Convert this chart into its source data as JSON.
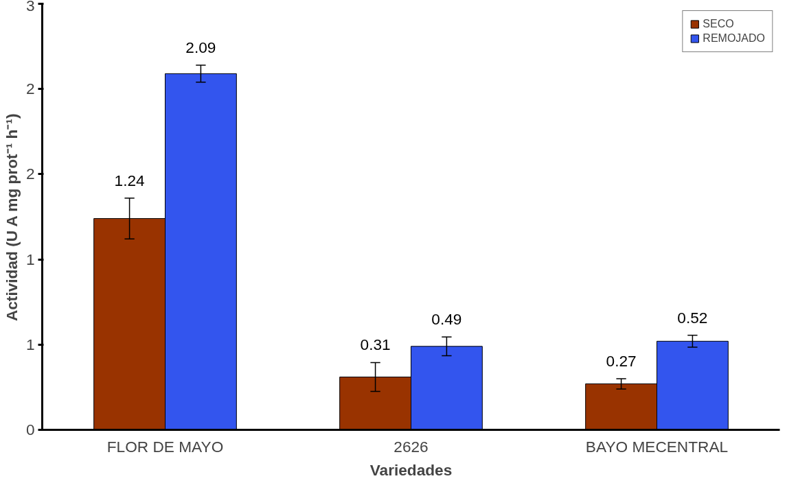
{
  "chart_data": {
    "type": "bar",
    "xlabel": "Variedades",
    "ylabel": "Actividad (U A mg prot⁻¹ h⁻¹)",
    "categories": [
      "FLOR DE MAYO",
      "2626",
      "BAYO MECENTRAL"
    ],
    "series": [
      {
        "name": "SECO",
        "color": "#993300",
        "values": [
          1.24,
          0.31,
          0.27
        ],
        "errors": [
          0.12,
          0.085,
          0.03
        ]
      },
      {
        "name": "REMOJADO",
        "color": "#3355ee",
        "values": [
          2.09,
          0.49,
          0.52
        ],
        "errors": [
          0.05,
          0.055,
          0.035
        ]
      }
    ],
    "ylim": [
      0,
      2.5
    ],
    "yticks": [
      0,
      {
        "value": 0.5,
        "label": "1"
      },
      {
        "value": 1,
        "label": "1"
      },
      {
        "value": 1.5,
        "label": "2"
      },
      {
        "value": 2,
        "label": "2"
      },
      {
        "value": 2.5,
        "label": "3"
      }
    ],
    "data_labels": true,
    "legend": "top right",
    "grid": false
  }
}
